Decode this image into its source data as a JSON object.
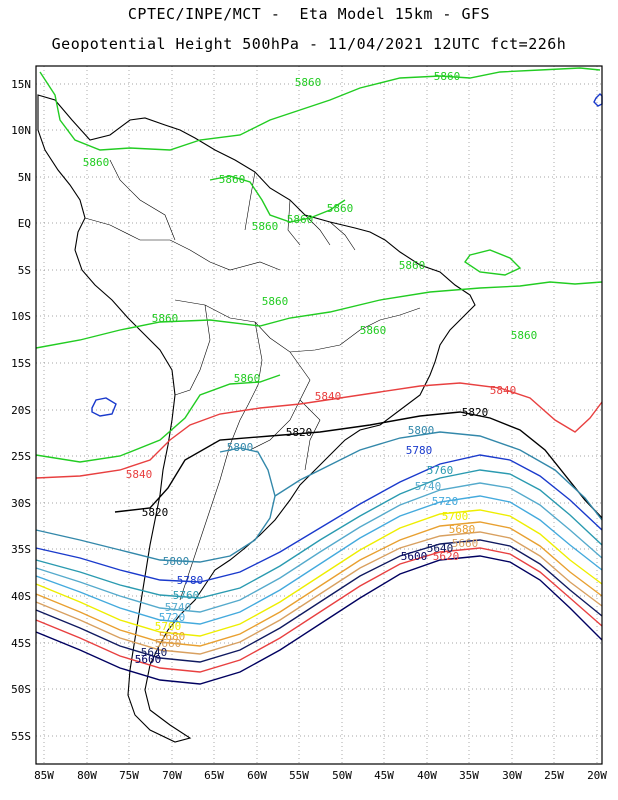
{
  "header": {
    "line1": "CPTEC/INPE/MCT -  Eta Model 15km - GFS",
    "line2": "Geopotential Height 500hPa - 11/04/2021 12UTC fct=226h"
  },
  "axes": {
    "lat_labels": [
      "15N",
      "10N",
      "5N",
      "EQ",
      "5S",
      "10S",
      "15S",
      "20S",
      "25S",
      "30S",
      "35S",
      "40S",
      "45S",
      "50S",
      "55S"
    ],
    "lon_labels": [
      "85W",
      "80W",
      "75W",
      "70W",
      "65W",
      "60W",
      "55W",
      "50W",
      "45W",
      "40W",
      "35W",
      "30W",
      "25W",
      "20W"
    ]
  },
  "colors": {
    "c5860": "#22cc22",
    "c5840": "#e84040",
    "c5820": "#000000",
    "c5800": "#3388aa",
    "c5780": "#1a3acc",
    "c5760": "#2a9ab0",
    "c5740": "#55aacc",
    "c5720": "#44aadd",
    "c5700": "#eeee00",
    "c5680": "#e8a030",
    "c5660": "#d8a060",
    "c5640": "#101a60",
    "c5620": "#e84040",
    "c5600": "#000060",
    "land": "#000000"
  },
  "contours": {
    "labels": [
      {
        "text": "5860",
        "color": "#22cc22"
      },
      {
        "text": "5860",
        "color": "#22cc22"
      },
      {
        "text": "5860",
        "color": "#22cc22"
      },
      {
        "text": "5860",
        "color": "#22cc22"
      },
      {
        "text": "5860",
        "color": "#22cc22"
      },
      {
        "text": "5860",
        "color": "#22cc22"
      },
      {
        "text": "5860",
        "color": "#22cc22"
      },
      {
        "text": "5860",
        "color": "#22cc22"
      },
      {
        "text": "5860",
        "color": "#22cc22"
      },
      {
        "text": "5860",
        "color": "#22cc22"
      },
      {
        "text": "5860",
        "color": "#22cc22"
      },
      {
        "text": "5860",
        "color": "#22cc22"
      },
      {
        "text": "5860",
        "color": "#22cc22"
      },
      {
        "text": "5840",
        "color": "#e84040"
      },
      {
        "text": "5840",
        "color": "#e84040"
      },
      {
        "text": "5840",
        "color": "#e84040"
      },
      {
        "text": "5820",
        "color": "#000000"
      },
      {
        "text": "5820",
        "color": "#000000"
      },
      {
        "text": "5820",
        "color": "#000000"
      },
      {
        "text": "5800",
        "color": "#3388aa"
      },
      {
        "text": "5800",
        "color": "#3388aa"
      },
      {
        "text": "5800",
        "color": "#3388aa"
      },
      {
        "text": "5780",
        "color": "#1a3acc"
      },
      {
        "text": "5780",
        "color": "#1a3acc"
      },
      {
        "text": "5760",
        "color": "#2a9ab0"
      },
      {
        "text": "5760",
        "color": "#2a9ab0"
      },
      {
        "text": "5740",
        "color": "#55aacc"
      },
      {
        "text": "5740",
        "color": "#55aacc"
      },
      {
        "text": "5720",
        "color": "#44aadd"
      },
      {
        "text": "5720",
        "color": "#44aadd"
      },
      {
        "text": "5700",
        "color": "#eeee00"
      },
      {
        "text": "5700",
        "color": "#eeee00"
      },
      {
        "text": "5680",
        "color": "#e8a030"
      },
      {
        "text": "5680",
        "color": "#e8a030"
      },
      {
        "text": "5660",
        "color": "#d8a060"
      },
      {
        "text": "5660",
        "color": "#d8a060"
      },
      {
        "text": "5640",
        "color": "#101a60"
      },
      {
        "text": "5640",
        "color": "#101a60"
      },
      {
        "text": "5620",
        "color": "#e84040"
      },
      {
        "text": "5600",
        "color": "#000060"
      },
      {
        "text": "5600",
        "color": "#000060"
      }
    ]
  }
}
